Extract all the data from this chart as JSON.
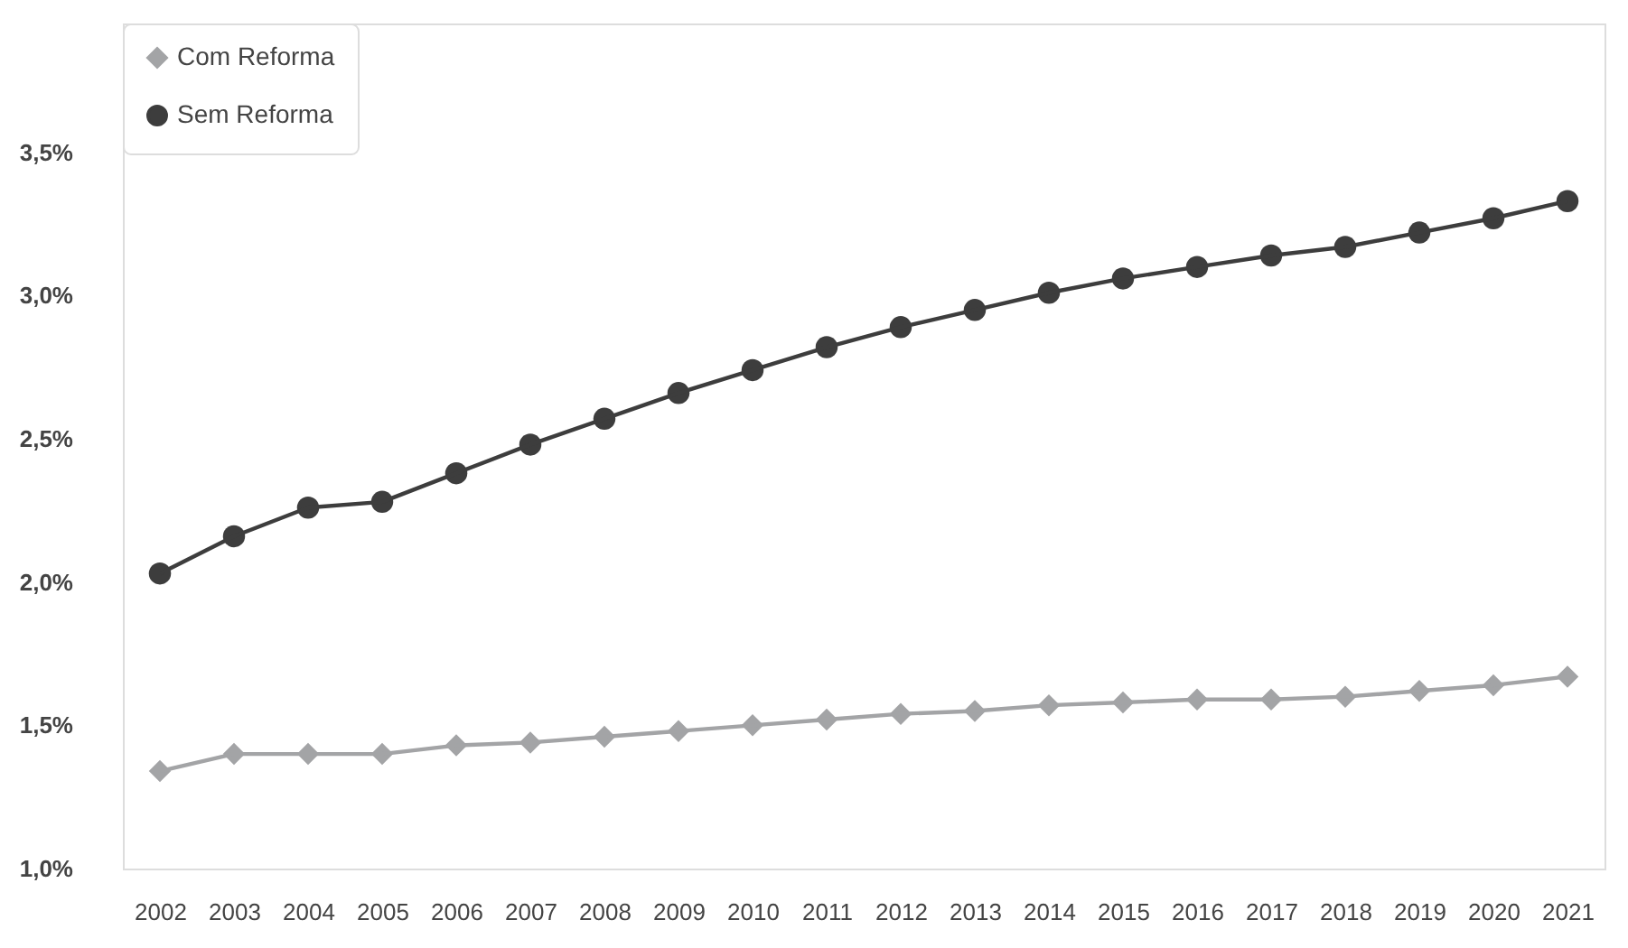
{
  "chart_data": {
    "type": "line",
    "categories": [
      "2002",
      "2003",
      "2004",
      "2005",
      "2006",
      "2007",
      "2008",
      "2009",
      "2010",
      "2011",
      "2012",
      "2013",
      "2014",
      "2015",
      "2016",
      "2017",
      "2018",
      "2019",
      "2020",
      "2021"
    ],
    "series": [
      {
        "name": "Com Reforma",
        "color": "#a3a4a6",
        "marker": "diamond",
        "values": [
          1.34,
          1.4,
          1.4,
          1.4,
          1.43,
          1.44,
          1.46,
          1.48,
          1.5,
          1.52,
          1.54,
          1.55,
          1.57,
          1.58,
          1.59,
          1.59,
          1.6,
          1.62,
          1.64,
          1.67
        ]
      },
      {
        "name": "Sem Reforma",
        "color": "#3d3d3d",
        "marker": "circle",
        "values": [
          2.03,
          2.16,
          2.26,
          2.28,
          2.38,
          2.48,
          2.57,
          2.66,
          2.74,
          2.82,
          2.89,
          2.95,
          3.01,
          3.06,
          3.1,
          3.14,
          3.17,
          3.22,
          3.27,
          3.33
        ]
      }
    ],
    "ylim": [
      1.0,
      3.95
    ],
    "yticks": [
      {
        "value": 1.0,
        "label": "1,0%"
      },
      {
        "value": 1.5,
        "label": "1,5%"
      },
      {
        "value": 2.0,
        "label": "2,0%"
      },
      {
        "value": 2.5,
        "label": "2,5%"
      },
      {
        "value": 3.0,
        "label": "3,0%"
      },
      {
        "value": 3.5,
        "label": "3,5%"
      }
    ],
    "grid": false,
    "legend": "top left",
    "line_style": "solid"
  }
}
